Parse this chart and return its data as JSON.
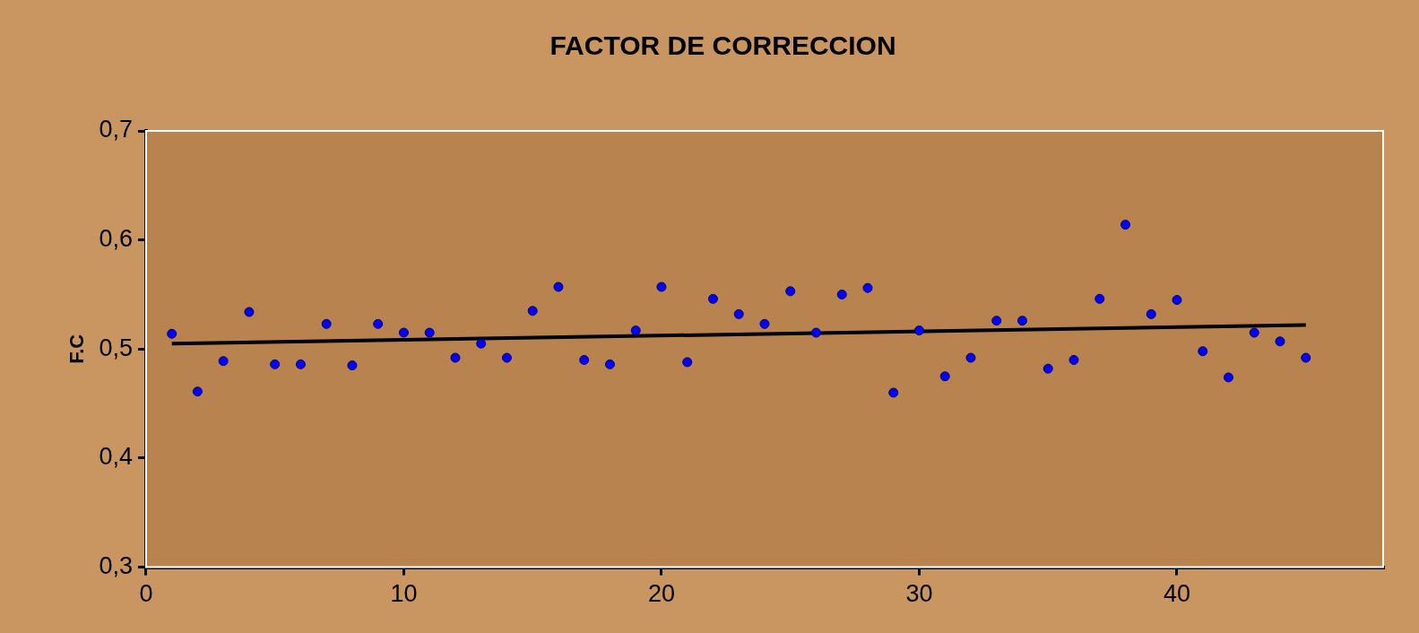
{
  "chart_data": {
    "type": "scatter",
    "title": "FACTOR DE CORRECCION",
    "ylabel": "F.C",
    "xlim": [
      0,
      48
    ],
    "xticks": [
      0,
      10,
      20,
      30,
      40
    ],
    "ylim": [
      0.3,
      0.7
    ],
    "yticks": [
      {
        "value": 0.3,
        "label": "0,3"
      },
      {
        "value": 0.4,
        "label": "0,4"
      },
      {
        "value": 0.5,
        "label": "0,5"
      },
      {
        "value": 0.6,
        "label": "0,6"
      },
      {
        "value": 0.7,
        "label": "0,7"
      }
    ],
    "marker": "circle",
    "series": [
      {
        "type": "scatter",
        "color": "#0000ff",
        "x": [
          1,
          2,
          3,
          4,
          5,
          6,
          7,
          8,
          9,
          10,
          11,
          12,
          13,
          14,
          15,
          16,
          17,
          18,
          19,
          20,
          21,
          22,
          23,
          24,
          25,
          26,
          27,
          28,
          29,
          30,
          31,
          32,
          33,
          34,
          35,
          36,
          37,
          38,
          39,
          40,
          41,
          42,
          43,
          44,
          45
        ],
        "values": [
          0.514,
          0.461,
          0.489,
          0.534,
          0.486,
          0.486,
          0.523,
          0.485,
          0.523,
          0.515,
          0.515,
          0.492,
          0.505,
          0.492,
          0.535,
          0.557,
          0.49,
          0.486,
          0.517,
          0.557,
          0.488,
          0.546,
          0.532,
          0.523,
          0.553,
          0.515,
          0.55,
          0.556,
          0.46,
          0.517,
          0.475,
          0.492,
          0.526,
          0.526,
          0.482,
          0.49,
          0.546,
          0.614,
          0.532,
          0.545,
          0.498,
          0.474,
          0.515,
          0.507,
          0.492
        ]
      },
      {
        "type": "line",
        "color": "#000000",
        "marker": "none",
        "line_style": "solid",
        "x": [
          1,
          45
        ],
        "values": [
          0.505,
          0.522
        ]
      }
    ]
  }
}
